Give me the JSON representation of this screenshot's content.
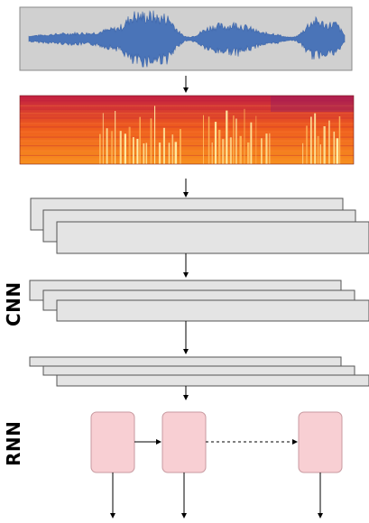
{
  "labels": {
    "cnn": "CNN",
    "rnn": "RNN"
  },
  "colors": {
    "waveform_panel": "#d0d0d0",
    "waveform": "#4a74b8",
    "spectrogram_low": "#c0203a",
    "spectrogram_mid": "#f06a1c",
    "spectrogram_high": "#fff4b0",
    "feature_map": "#e4e4e4",
    "rnn_cell_fill": "#f8cfd3",
    "rnn_cell_stroke": "#c89aa0",
    "arrow": "#000000"
  }
}
